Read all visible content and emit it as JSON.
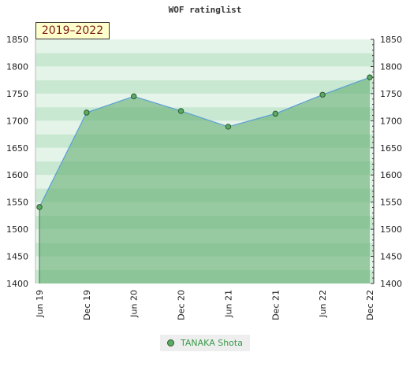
{
  "chart_data": {
    "type": "line",
    "title": "WOF ratinglist",
    "badge": "2019–2022",
    "x": [
      "Jun 19",
      "Dec 19",
      "Jun 20",
      "Dec 20",
      "Jun 21",
      "Dec 21",
      "Jun 22",
      "Dec 22"
    ],
    "series": [
      {
        "name": "TANAKA Shota",
        "values": [
          1541,
          1715,
          1745,
          1718,
          1689,
          1713,
          1748,
          1780
        ]
      }
    ],
    "ylim": [
      1400,
      1850
    ],
    "yticks": [
      1400,
      1450,
      1500,
      1550,
      1600,
      1650,
      1700,
      1750,
      1800,
      1850
    ],
    "grid": true,
    "legend_position": "bottom",
    "colors": {
      "line": "#5a9fd6",
      "marker": "#5aaa66",
      "fill": "#5aa868"
    }
  }
}
